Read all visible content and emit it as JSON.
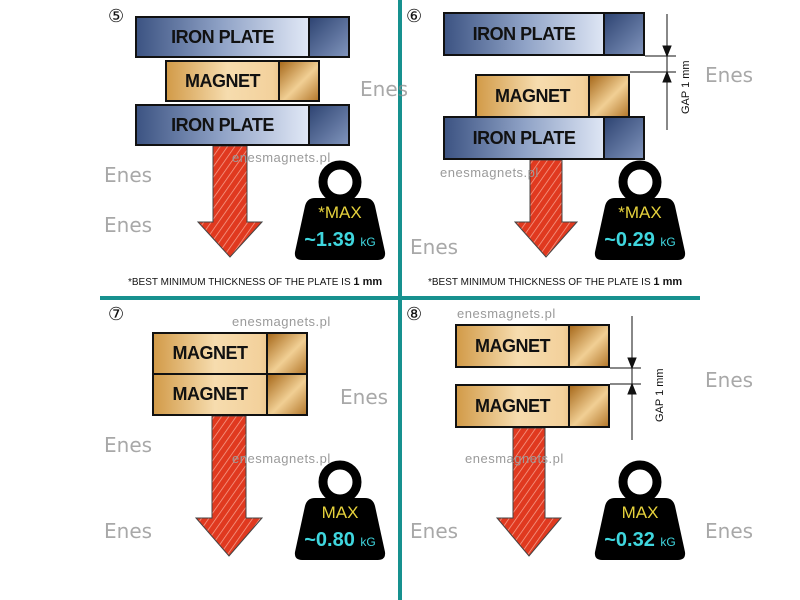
{
  "watermark": {
    "site": "enesmagnets.pl",
    "logo": "Enes"
  },
  "colors": {
    "divider": "#17918f",
    "arrow": "#e0391f",
    "weight": "#000000",
    "max_text": "#e6d23c",
    "value_text": "#3fd6de"
  },
  "panels": [
    {
      "number": "⑤",
      "top": "IRON PLATE",
      "middle": "MAGNET",
      "bottom": "IRON PLATE",
      "max": "*MAX",
      "value": "~1.39",
      "unit": "kG",
      "note": "*BEST MINIMUM THICKNESS OF THE PLATE IS ",
      "note_bold": "1 mm"
    },
    {
      "number": "⑥",
      "top": "IRON PLATE",
      "middle": "MAGNET",
      "bottom": "IRON PLATE",
      "gap": "GAP 1 mm",
      "max": "*MAX",
      "value": "~0.29",
      "unit": "kG",
      "note": "*BEST MINIMUM THICKNESS OF THE PLATE IS ",
      "note_bold": "1 mm"
    },
    {
      "number": "⑦",
      "top": "MAGNET",
      "bottom": "MAGNET",
      "max": "MAX",
      "value": "~0.80",
      "unit": "kG"
    },
    {
      "number": "⑧",
      "top": "MAGNET",
      "bottom": "MAGNET",
      "gap": "GAP 1 mm",
      "max": "MAX",
      "value": "~0.32",
      "unit": "kG"
    }
  ]
}
